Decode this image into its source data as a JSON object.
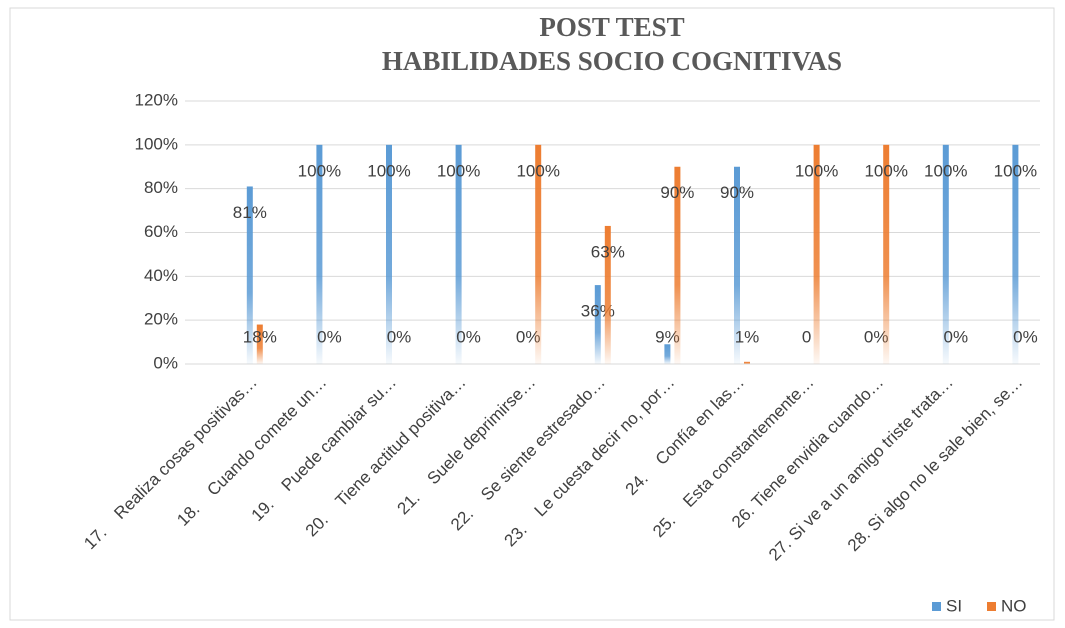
{
  "chart_data": {
    "type": "bar",
    "title": [
      "POST TEST",
      "HABILIDADES SOCIO COGNITIVAS"
    ],
    "categories": [
      "17.    Realiza cosas positivas…",
      "18.    Cuando comete un…",
      "19.    Puede cambiar su…",
      "20.    Tiene actitud positiva…",
      "21.    Suele deprimirse…",
      "22.    Se siente estresado…",
      "23.    Le cuesta decir no, por…",
      "24.    Confía en las…",
      "25.    Esta constantemente…",
      "26. Tiene envidia cuando…",
      "27. Si ve a un amigo triste trata…",
      "28. Si algo no le sale bien, se…"
    ],
    "series": [
      {
        "name": "SI",
        "color": "#5b9bd5",
        "values": [
          81,
          100,
          100,
          100,
          0,
          36,
          9,
          90,
          0,
          0,
          100,
          100
        ],
        "value_labels": [
          "81%",
          "100%",
          "100%",
          "100%",
          "0%",
          "36%",
          "9%",
          "90%",
          "0",
          "0%",
          "100%",
          "100%"
        ]
      },
      {
        "name": "NO",
        "color": "#ed7d31",
        "values": [
          18,
          0,
          0,
          0,
          100,
          63,
          90,
          1,
          100,
          100,
          0,
          0
        ],
        "value_labels": [
          "18%",
          "0%",
          "0%",
          "0%",
          "100%",
          "63%",
          "90%",
          "1%",
          "100%",
          "100%",
          "0%",
          "0%"
        ]
      }
    ],
    "ylim": [
      0,
      120
    ],
    "yticks": [
      {
        "value": 0,
        "label": "0%"
      },
      {
        "value": 20,
        "label": "20%"
      },
      {
        "value": 40,
        "label": "40%"
      },
      {
        "value": 60,
        "label": "60%"
      },
      {
        "value": 80,
        "label": "80%"
      },
      {
        "value": 100,
        "label": "100%"
      },
      {
        "value": 120,
        "label": "120%"
      }
    ],
    "grid": true,
    "legend": "bottom-right"
  }
}
